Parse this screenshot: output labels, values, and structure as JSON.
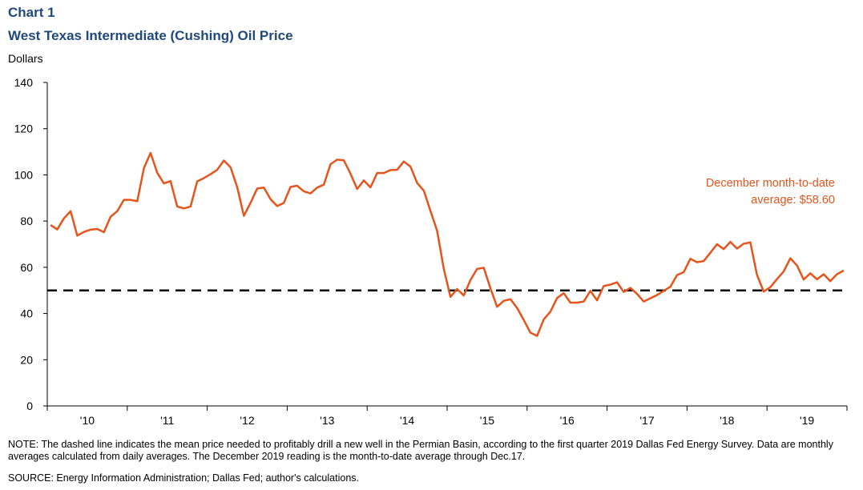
{
  "header": {
    "chart_label": "Chart 1",
    "title": "West Texas Intermediate (Cushing) Oil Price",
    "units": "Dollars"
  },
  "notes": "NOTE: The dashed line indicates the mean price needed to profitably drill a new well in the Permian Basin, according to the first quarter 2019 Dallas Fed Energy Survey. Data are monthly averages calculated from daily averages. The December 2019 reading is the month-to-date average through Dec.17.",
  "source": "SOURCE: Energy Information Administration; Dallas Fed; author's calculations.",
  "chart_data": {
    "type": "line",
    "title": "West Texas Intermediate (Cushing) Oil Price",
    "ylabel": "Dollars",
    "xlabel": "",
    "ylim": [
      0,
      140
    ],
    "yticks": [
      0,
      20,
      40,
      60,
      80,
      100,
      120,
      140
    ],
    "x_tick_labels": [
      "'10",
      "'11",
      "'12",
      "'13",
      "'14",
      "'15",
      "'16",
      "'17",
      "'18",
      "'19"
    ],
    "x_range": [
      "2010-01",
      "2019-12"
    ],
    "grid": false,
    "line_color": "#e5541b",
    "series": [
      {
        "x": [
          "2010-01",
          "2010-02",
          "2010-03",
          "2010-04",
          "2010-05",
          "2010-06",
          "2010-07",
          "2010-08",
          "2010-09",
          "2010-10",
          "2010-11",
          "2010-12",
          "2011-01",
          "2011-02",
          "2011-03",
          "2011-04",
          "2011-05",
          "2011-06",
          "2011-07",
          "2011-08",
          "2011-09",
          "2011-10",
          "2011-11",
          "2011-12",
          "2012-01",
          "2012-02",
          "2012-03",
          "2012-04",
          "2012-05",
          "2012-06",
          "2012-07",
          "2012-08",
          "2012-09",
          "2012-10",
          "2012-11",
          "2012-12",
          "2013-01",
          "2013-02",
          "2013-03",
          "2013-04",
          "2013-05",
          "2013-06",
          "2013-07",
          "2013-08",
          "2013-09",
          "2013-10",
          "2013-11",
          "2013-12",
          "2014-01",
          "2014-02",
          "2014-03",
          "2014-04",
          "2014-05",
          "2014-06",
          "2014-07",
          "2014-08",
          "2014-09",
          "2014-10",
          "2014-11",
          "2014-12",
          "2015-01",
          "2015-02",
          "2015-03",
          "2015-04",
          "2015-05",
          "2015-06",
          "2015-07",
          "2015-08",
          "2015-09",
          "2015-10",
          "2015-11",
          "2015-12",
          "2016-01",
          "2016-02",
          "2016-03",
          "2016-04",
          "2016-05",
          "2016-06",
          "2016-07",
          "2016-08",
          "2016-09",
          "2016-10",
          "2016-11",
          "2016-12",
          "2017-01",
          "2017-02",
          "2017-03",
          "2017-04",
          "2017-05",
          "2017-06",
          "2017-07",
          "2017-08",
          "2017-09",
          "2017-10",
          "2017-11",
          "2017-12",
          "2018-01",
          "2018-02",
          "2018-03",
          "2018-04",
          "2018-05",
          "2018-06",
          "2018-07",
          "2018-08",
          "2018-09",
          "2018-10",
          "2018-11",
          "2018-12",
          "2019-01",
          "2019-02",
          "2019-03",
          "2019-04",
          "2019-05",
          "2019-06",
          "2019-07",
          "2019-08",
          "2019-09",
          "2019-10",
          "2019-11",
          "2019-12"
        ],
        "y": [
          78.3,
          76.4,
          81.2,
          84.3,
          73.7,
          75.3,
          76.3,
          76.6,
          75.2,
          81.9,
          84.3,
          89.2,
          89.2,
          88.6,
          102.9,
          109.5,
          100.9,
          96.3,
          97.3,
          86.3,
          85.5,
          86.3,
          97.2,
          98.6,
          100.3,
          102.2,
          106.2,
          103.3,
          94.7,
          82.3,
          87.9,
          94.1,
          94.5,
          89.5,
          86.5,
          87.9,
          94.8,
          95.3,
          92.9,
          92.0,
          94.5,
          95.8,
          104.6,
          106.6,
          106.3,
          100.5,
          93.9,
          97.6,
          94.6,
          100.8,
          100.8,
          102.1,
          102.2,
          105.8,
          103.6,
          96.5,
          93.2,
          84.4,
          75.8,
          59.3,
          47.2,
          50.6,
          47.8,
          54.5,
          59.3,
          59.8,
          50.9,
          42.9,
          45.5,
          46.2,
          42.4,
          37.2,
          31.7,
          30.3,
          37.5,
          40.8,
          46.7,
          48.8,
          44.7,
          44.7,
          45.2,
          49.8,
          45.7,
          51.9,
          52.5,
          53.5,
          49.3,
          51.1,
          48.5,
          45.2,
          46.6,
          48.0,
          49.8,
          51.6,
          56.6,
          57.9,
          63.7,
          62.2,
          62.7,
          66.3,
          70.0,
          67.9,
          71.0,
          68.1,
          70.2,
          70.8,
          56.7,
          49.5,
          51.4,
          54.9,
          58.2,
          63.9,
          60.8,
          54.7,
          57.4,
          54.8,
          57.0,
          54.0,
          57.0,
          58.6
        ]
      }
    ],
    "reference_line": {
      "value": 50,
      "style": "dashed",
      "color": "#000000"
    },
    "annotation": {
      "lines": [
        "December  month-to-date",
        "average:  $58.60"
      ],
      "color": "#e5541b"
    }
  }
}
